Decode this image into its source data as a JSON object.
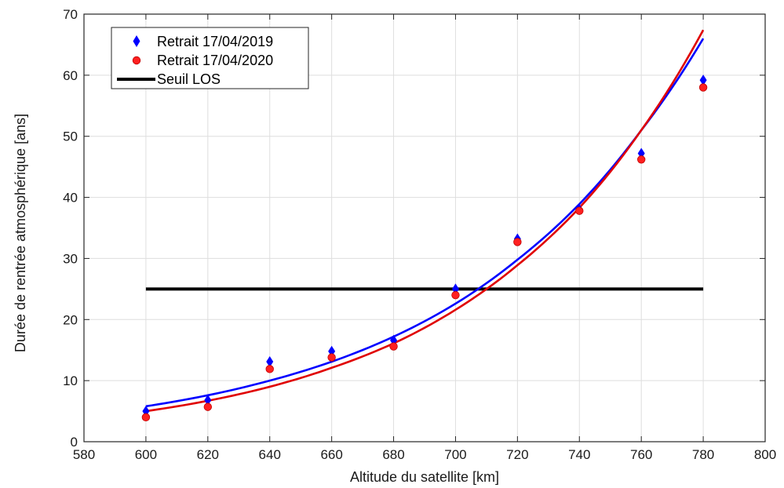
{
  "chart_data": {
    "type": "scatter",
    "xlabel": "Altitude du satellite [km]",
    "ylabel": "Durée de rentrée atmosphérique [ans]",
    "xlim": [
      580,
      800
    ],
    "ylim": [
      0,
      70
    ],
    "xticks": [
      580,
      600,
      620,
      640,
      660,
      680,
      700,
      720,
      740,
      760,
      780,
      800
    ],
    "yticks": [
      0,
      10,
      20,
      30,
      40,
      50,
      60,
      70
    ],
    "grid": true,
    "legend_position": "top-left",
    "series": [
      {
        "name": "Retrait 17/04/2019",
        "kind": "points",
        "marker": "diamond",
        "color": "#0000ff",
        "x": [
          600,
          620,
          640,
          660,
          680,
          700,
          720,
          740,
          760,
          780
        ],
        "y": [
          5.0,
          6.8,
          13.1,
          14.8,
          16.6,
          25.0,
          33.2,
          38.0,
          47.2,
          59.2
        ]
      },
      {
        "name": "Retrait 17/04/2020",
        "kind": "points",
        "marker": "circle",
        "color": "#ff2020",
        "x": [
          600,
          620,
          640,
          660,
          680,
          700,
          720,
          740,
          760,
          780
        ],
        "y": [
          4.0,
          5.7,
          11.9,
          13.8,
          15.6,
          24.0,
          32.7,
          37.8,
          46.2,
          58.0
        ]
      },
      {
        "name": "",
        "kind": "fit-curve",
        "color": "#0000ff",
        "x": [
          600,
          620,
          640,
          660,
          680,
          700,
          720,
          740,
          760,
          780
        ],
        "y": [
          5.8,
          7.6,
          10.0,
          13.1,
          17.2,
          22.6,
          29.8,
          38.9,
          51.0,
          66.0
        ]
      },
      {
        "name": "",
        "kind": "fit-curve",
        "color": "#e00000",
        "x": [
          600,
          620,
          640,
          660,
          680,
          700,
          720,
          740,
          760,
          780
        ],
        "y": [
          5.0,
          6.7,
          9.0,
          12.1,
          16.1,
          21.6,
          28.9,
          38.3,
          51.0,
          67.4
        ]
      },
      {
        "name": "Seuil LOS",
        "kind": "threshold",
        "color": "#000000",
        "x": [
          600,
          780
        ],
        "y": [
          25,
          25
        ]
      }
    ]
  }
}
